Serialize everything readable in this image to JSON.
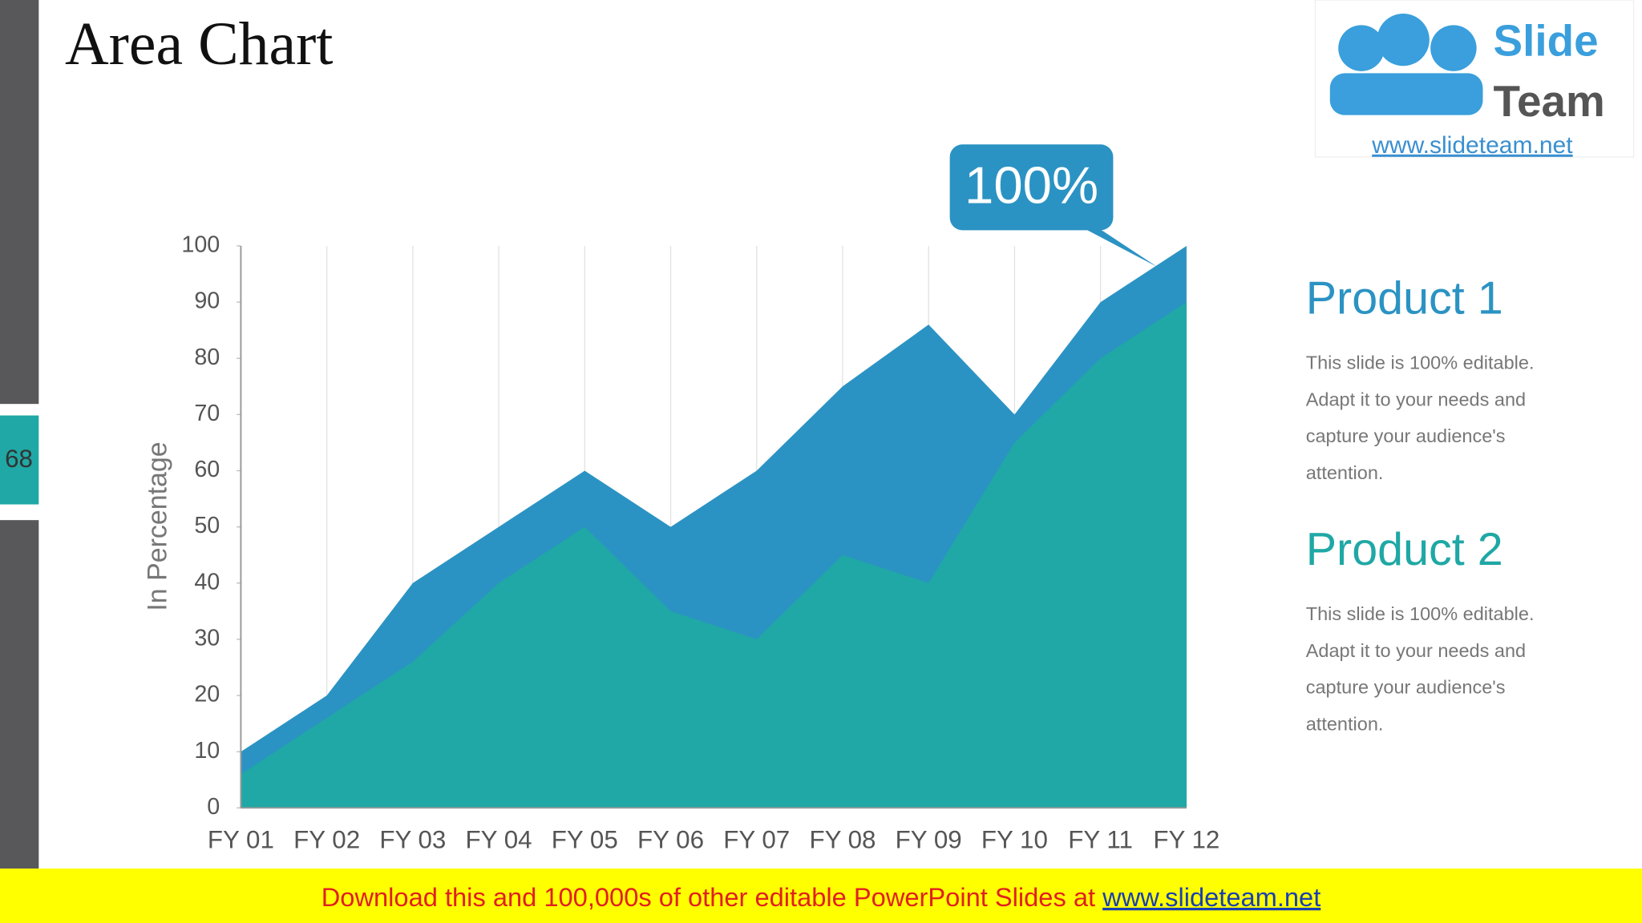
{
  "slide": {
    "page_number": "68",
    "logo": {
      "line1": "Slide",
      "line2": "Team",
      "url": "www.slideteam.net"
    },
    "footer": {
      "text": "Download this and 100,000s of other editable PowerPoint Slides at ",
      "link": "www.slideteam.net"
    }
  },
  "chart_data": {
    "type": "area",
    "title": "Area Chart",
    "y_label": "In Percentage",
    "annotation": "100%",
    "categories": [
      "FY 01",
      "FY 02",
      "FY 03",
      "FY 04",
      "FY 05",
      "FY 06",
      "FY 07",
      "FY 08",
      "FY 09",
      "FY 10",
      "FY 11",
      "FY 12"
    ],
    "series": [
      {
        "name": "Product 1",
        "color": "#2b93c3",
        "values": [
          10,
          20,
          40,
          50,
          60,
          50,
          60,
          75,
          86,
          70,
          90,
          100
        ],
        "description": [
          "This slide is 100% editable.",
          "Adapt it to your needs and",
          "capture your audience's",
          "attention."
        ]
      },
      {
        "name": "Product 2",
        "color": "#1fa8a5",
        "values": [
          6,
          16,
          26,
          40,
          50,
          35,
          30,
          45,
          40,
          65,
          80,
          90
        ],
        "description": [
          "This slide is 100% editable.",
          "Adapt it to your needs and",
          "capture your audience's",
          "attention."
        ]
      }
    ],
    "ylim": [
      0,
      100
    ],
    "yticks": [
      0,
      10,
      20,
      30,
      40,
      50,
      60,
      70,
      80,
      90,
      100
    ],
    "grid": true
  }
}
